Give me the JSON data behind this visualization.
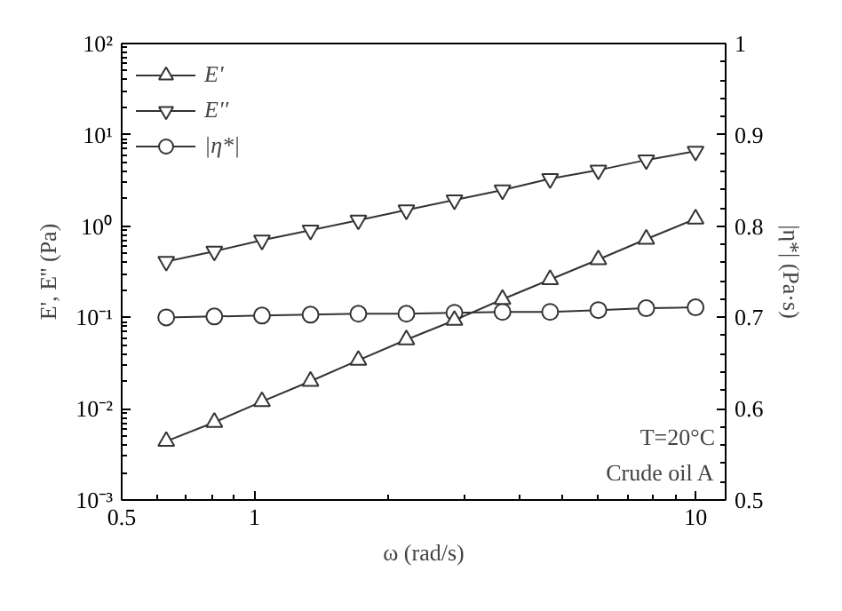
{
  "chart_data": {
    "type": "line",
    "xlabel": "ω (rad/s)",
    "ylabel": "E', E'' (Pa)",
    "y2label": "|η*| (Pa·s)",
    "log": "xy",
    "xlim": [
      0.5,
      11.7
    ],
    "xticks": [
      0.5,
      1,
      10
    ],
    "ylim": [
      0.001,
      100
    ],
    "yticks": [
      {
        "value": 0.001,
        "label": "10⁻³"
      },
      {
        "value": 0.01,
        "label": "10⁻²"
      },
      {
        "value": 0.1,
        "label": "10⁻¹"
      },
      {
        "value": 1,
        "label": "10⁰"
      },
      {
        "value": 10,
        "label": "10¹"
      },
      {
        "value": 100,
        "label": "10²"
      }
    ],
    "y2lim": [
      0.5,
      1
    ],
    "y2ticks": [
      0.5,
      0.6,
      0.7,
      0.8,
      0.9,
      1
    ],
    "x": [
      0.631,
      0.811,
      1.04,
      1.34,
      1.72,
      2.21,
      2.84,
      3.65,
      4.68,
      6.02,
      7.73,
      10
    ],
    "legend": "top left",
    "grid": false,
    "line_style": "solid",
    "series": [
      {
        "name": "E'",
        "color": "#333333",
        "marker": "triangle",
        "values": [
          0.0044,
          0.0071,
          0.012,
          0.02,
          0.034,
          0.057,
          0.093,
          0.158,
          0.26,
          0.43,
          0.72,
          1.2
        ]
      },
      {
        "name": "E''",
        "color": "#333333",
        "marker": "triangle",
        "values": [
          0.41,
          0.53,
          0.7,
          0.9,
          1.16,
          1.5,
          1.93,
          2.48,
          3.3,
          4.1,
          5.3,
          6.6
        ]
      },
      {
        "name": "|η*|",
        "color": "#333333",
        "marker": "circle",
        "axis": "y2",
        "values": [
          0.7,
          0.701,
          0.702,
          0.703,
          0.704,
          0.704,
          0.705,
          0.706,
          0.706,
          0.708,
          0.71,
          0.711
        ]
      }
    ],
    "annotations": [
      "T=20°C",
      "Crude oil A"
    ]
  }
}
